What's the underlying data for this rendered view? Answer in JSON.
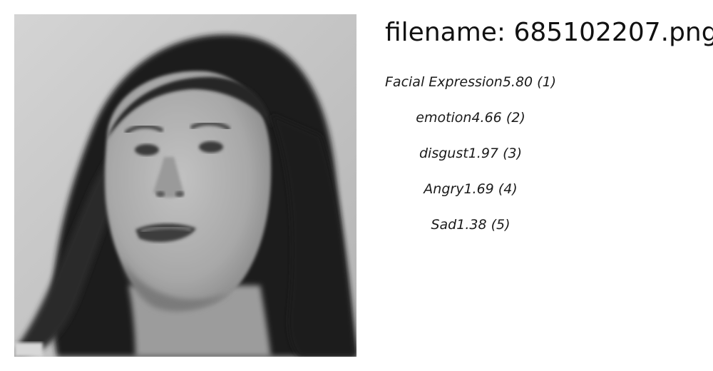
{
  "image": {
    "description_icon": "face-photo"
  },
  "filename_label": "filename: 685102207.png",
  "results": [
    {
      "label": "Facial Expression",
      "score": "5.80",
      "rank": "(1)"
    },
    {
      "label": "emotion",
      "score": "4.66",
      "rank": "(2)"
    },
    {
      "label": "disgust",
      "score": "1.97",
      "rank": "(3)"
    },
    {
      "label": "Angry",
      "score": "1.69",
      "rank": "(4)"
    },
    {
      "label": "Sad",
      "score": "1.38",
      "rank": "(5)"
    }
  ]
}
